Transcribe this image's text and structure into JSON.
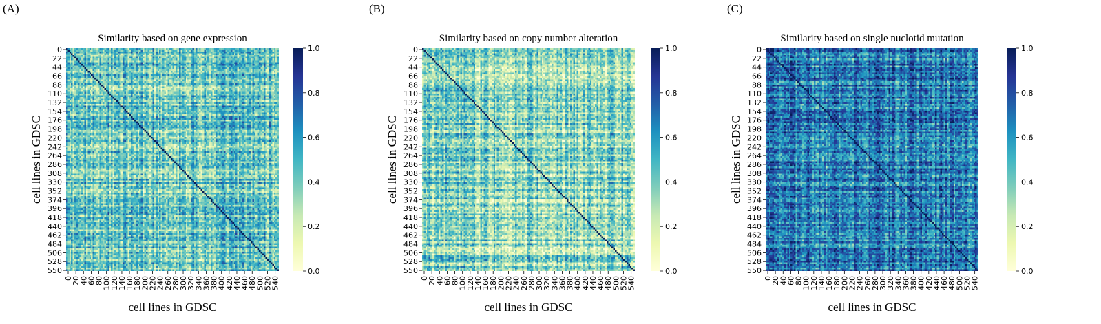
{
  "chart_data": [
    {
      "type": "heatmap",
      "panel_label": "(A)",
      "title": "Similarity based on gene expression",
      "xlabel": "cell lines in GDSC",
      "ylabel": "cell lines in GDSC",
      "x_ticks": [
        "0",
        "20",
        "40",
        "60",
        "80",
        "100",
        "120",
        "140",
        "160",
        "180",
        "200",
        "220",
        "240",
        "260",
        "280",
        "300",
        "320",
        "340",
        "360",
        "380",
        "400",
        "420",
        "440",
        "460",
        "480",
        "500",
        "520",
        "540"
      ],
      "y_ticks": [
        "0",
        "22",
        "44",
        "66",
        "88",
        "110",
        "132",
        "154",
        "176",
        "198",
        "220",
        "242",
        "264",
        "286",
        "308",
        "330",
        "352",
        "374",
        "396",
        "418",
        "440",
        "462",
        "484",
        "506",
        "528",
        "550"
      ],
      "n": 555,
      "colorbar": {
        "min": 0.0,
        "max": 1.0,
        "ticks": [
          "0.0",
          "0.2",
          "0.4",
          "0.6",
          "0.8",
          "1.0"
        ]
      },
      "colormap": "YlGnBu",
      "typical_value": 0.42,
      "diagonal_value": 1.0,
      "grid": false
    },
    {
      "type": "heatmap",
      "panel_label": "(B)",
      "title": "Similarity based on copy number alteration",
      "xlabel": "cell lines in GDSC",
      "ylabel": "cell lines in GDSC",
      "x_ticks": [
        "0",
        "20",
        "40",
        "60",
        "80",
        "100",
        "120",
        "140",
        "160",
        "180",
        "200",
        "220",
        "240",
        "260",
        "280",
        "300",
        "320",
        "340",
        "360",
        "380",
        "400",
        "420",
        "440",
        "460",
        "480",
        "500",
        "520",
        "540"
      ],
      "y_ticks": [
        "0",
        "22",
        "44",
        "66",
        "88",
        "110",
        "132",
        "154",
        "176",
        "198",
        "220",
        "242",
        "264",
        "286",
        "308",
        "330",
        "352",
        "374",
        "396",
        "418",
        "440",
        "462",
        "484",
        "506",
        "528",
        "550"
      ],
      "n": 555,
      "colorbar": {
        "min": 0.0,
        "max": 1.0,
        "ticks": [
          "0.0",
          "0.2",
          "0.4",
          "0.6",
          "0.8",
          "1.0"
        ]
      },
      "colormap": "YlGnBu",
      "typical_value": 0.35,
      "diagonal_value": 1.0,
      "grid": false
    },
    {
      "type": "heatmap",
      "panel_label": "(C)",
      "title": "Similarity based on single nuclotid mutation",
      "xlabel": "cell lines in GDSC",
      "ylabel": "cell lines in GDSC",
      "x_ticks": [
        "0",
        "20",
        "40",
        "60",
        "80",
        "100",
        "120",
        "140",
        "160",
        "180",
        "200",
        "220",
        "240",
        "260",
        "280",
        "300",
        "320",
        "340",
        "360",
        "380",
        "400",
        "420",
        "440",
        "460",
        "480",
        "500",
        "520",
        "540"
      ],
      "y_ticks": [
        "0",
        "22",
        "44",
        "66",
        "88",
        "110",
        "132",
        "154",
        "176",
        "198",
        "220",
        "242",
        "264",
        "286",
        "308",
        "330",
        "352",
        "374",
        "396",
        "418",
        "440",
        "462",
        "484",
        "506",
        "528",
        "550"
      ],
      "n": 555,
      "colorbar": {
        "min": 0.0,
        "max": 1.0,
        "ticks": [
          "0.0",
          "0.2",
          "0.4",
          "0.6",
          "0.8",
          "1.0"
        ]
      },
      "colormap": "YlGnBu",
      "typical_value": 0.68,
      "diagonal_value": 1.0,
      "grid": false
    }
  ],
  "colors": {
    "ylgnbu": [
      "#ffffd9",
      "#edf8b1",
      "#c7e9b4",
      "#7fcdbb",
      "#41b6c4",
      "#1d91c0",
      "#225ea8",
      "#253494",
      "#081d58"
    ],
    "text": "#000000"
  }
}
